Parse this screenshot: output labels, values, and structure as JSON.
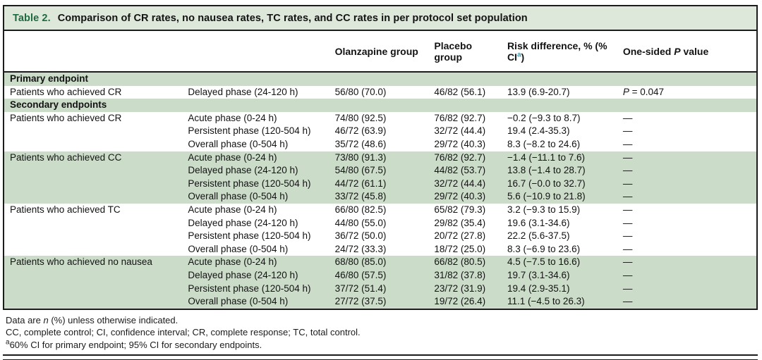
{
  "colors": {
    "table_label_green": "#1e6b41",
    "band_green": "#cbdcc9",
    "title_bar_bg": "#dde7da",
    "superscript_blue": "#2d9ec2",
    "border_black": "#1c1c1c"
  },
  "title": {
    "label": "Table 2.",
    "text": "Comparison of CR rates, no nausea rates, TC rates, and CC rates in per protocol set population"
  },
  "header": {
    "olanzapine": "Olanzapine group",
    "placebo": "Placebo group",
    "risk_prefix": "Risk difference, % (% CI",
    "risk_sup": "a",
    "risk_suffix": ")",
    "p_prefix": "One-sided ",
    "p_italic": "P",
    "p_suffix": " value"
  },
  "rows": [
    {
      "type": "section",
      "label": "Primary endpoint"
    },
    {
      "type": "data",
      "bg": "white",
      "endpoint": "Patients who achieved CR",
      "phase": "Delayed phase (24-120 h)",
      "olanzapine": "56/80 (70.0)",
      "placebo": "46/82 (56.1)",
      "risk": "13.9 (6.9-20.7)",
      "p_italic": "P",
      "p_rest": " = 0.047"
    },
    {
      "type": "section",
      "label": "Secondary endpoints"
    },
    {
      "type": "data",
      "bg": "white",
      "endpoint": "Patients who achieved CR",
      "phase": "Acute phase (0-24 h)",
      "olanzapine": "74/80 (92.5)",
      "placebo": "76/82 (92.7)",
      "risk": "−0.2 (−9.3 to 8.7)",
      "p": "—"
    },
    {
      "type": "data",
      "bg": "white",
      "endpoint": "",
      "phase": "Persistent phase (120-504 h)",
      "olanzapine": "46/72 (63.9)",
      "placebo": "32/72 (44.4)",
      "risk": "19.4 (2.4-35.3)",
      "p": "—"
    },
    {
      "type": "data",
      "bg": "white",
      "endpoint": "",
      "phase": "Overall phase (0-504 h)",
      "olanzapine": "35/72 (48.6)",
      "placebo": "29/72 (40.3)",
      "risk": "8.3 (−8.2 to 24.6)",
      "p": "—"
    },
    {
      "type": "data",
      "bg": "green",
      "endpoint": "Patients who achieved CC",
      "phase": "Acute phase (0-24 h)",
      "olanzapine": "73/80 (91.3)",
      "placebo": "76/82 (92.7)",
      "risk": "−1.4 (−11.1 to 7.6)",
      "p": "—"
    },
    {
      "type": "data",
      "bg": "green",
      "endpoint": "",
      "phase": "Delayed phase (24-120 h)",
      "olanzapine": "54/80 (67.5)",
      "placebo": "44/82 (53.7)",
      "risk": "13.8 (−1.4 to 28.7)",
      "p": "—"
    },
    {
      "type": "data",
      "bg": "green",
      "endpoint": "",
      "phase": "Persistent phase (120-504 h)",
      "olanzapine": "44/72 (61.1)",
      "placebo": "32/72 (44.4)",
      "risk": "16.7 (−0.0 to 32.7)",
      "p": "—"
    },
    {
      "type": "data",
      "bg": "green",
      "endpoint": "",
      "phase": "Overall phase (0-504 h)",
      "olanzapine": "33/72 (45.8)",
      "placebo": "29/72 (40.3)",
      "risk": "5.6 (−10.9 to 21.8)",
      "p": "—"
    },
    {
      "type": "data",
      "bg": "white",
      "endpoint": "Patients who achieved TC",
      "phase": "Acute phase (0-24 h)",
      "olanzapine": "66/80 (82.5)",
      "placebo": "65/82 (79.3)",
      "risk": "3.2 (−9.3 to 15.9)",
      "p": "—"
    },
    {
      "type": "data",
      "bg": "white",
      "endpoint": "",
      "phase": "Delayed phase (24-120 h)",
      "olanzapine": "44/80 (55.0)",
      "placebo": "29/82 (35.4)",
      "risk": "19.6 (3.1-34.6)",
      "p": "—"
    },
    {
      "type": "data",
      "bg": "white",
      "endpoint": "",
      "phase": "Persistent phase (120-504 h)",
      "olanzapine": "36/72 (50.0)",
      "placebo": "20/72 (27.8)",
      "risk": "22.2 (5.6-37.5)",
      "p": "—"
    },
    {
      "type": "data",
      "bg": "white",
      "endpoint": "",
      "phase": "Overall phase (0-504 h)",
      "olanzapine": "24/72 (33.3)",
      "placebo": "18/72 (25.0)",
      "risk": "8.3 (−6.9 to 23.6)",
      "p": "—"
    },
    {
      "type": "data",
      "bg": "green",
      "endpoint": "Patients who achieved no nausea",
      "phase": "Acute phase (0-24 h)",
      "olanzapine": "68/80 (85.0)",
      "placebo": "66/82 (80.5)",
      "risk": "4.5 (−7.5 to 16.6)",
      "p": "—"
    },
    {
      "type": "data",
      "bg": "green",
      "endpoint": "",
      "phase": "Delayed phase (24-120 h)",
      "olanzapine": "46/80 (57.5)",
      "placebo": "31/82 (37.8)",
      "risk": "19.7 (3.1-34.6)",
      "p": "—"
    },
    {
      "type": "data",
      "bg": "green",
      "endpoint": "",
      "phase": "Persistent phase (120-504 h)",
      "olanzapine": "37/72 (51.4)",
      "placebo": "23/72 (31.9)",
      "risk": "19.4 (2.9-35.1)",
      "p": "—"
    },
    {
      "type": "data",
      "bg": "green",
      "endpoint": "",
      "phase": "Overall phase (0-504 h)",
      "olanzapine": "27/72 (37.5)",
      "placebo": "19/72 (26.4)",
      "risk": "11.1 (−4.5 to 26.3)",
      "p": "—"
    }
  ],
  "footnotes": {
    "line1_prefix": "Data are ",
    "line1_italic": "n",
    "line1_suffix": " (%) unless otherwise indicated.",
    "line2": "CC, complete control; CI, confidence interval; CR, complete response; TC, total control.",
    "line3_sup": "a",
    "line3_text": "60% CI for primary endpoint; 95% CI for secondary endpoints."
  }
}
